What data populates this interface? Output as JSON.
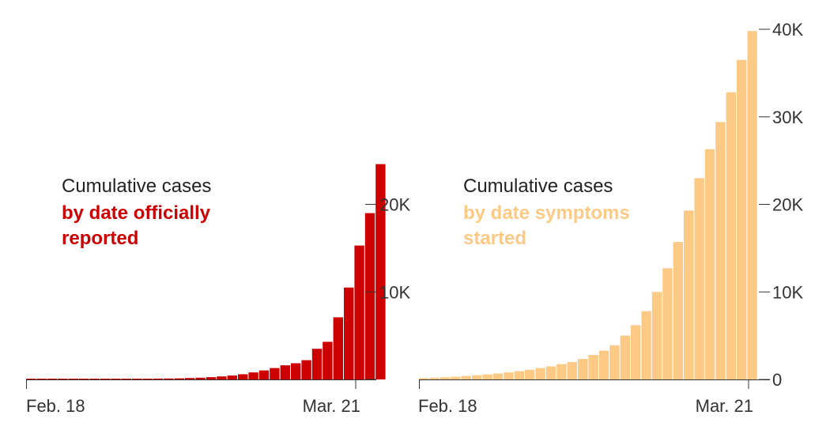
{
  "chart_data": [
    {
      "type": "bar",
      "annotation": {
        "line1": "Cumulative cases",
        "line2": "by date officially",
        "line3": "reported"
      },
      "color": "#cc0000",
      "x_labels": {
        "start": "Feb. 18",
        "end": "Mar. 21"
      },
      "y_ticks": [
        {
          "value": 0,
          "label": ""
        },
        {
          "value": 10000,
          "label": "10K"
        },
        {
          "value": 20000,
          "label": "20K"
        }
      ],
      "ylim": [
        0,
        40000
      ],
      "values": [
        10,
        12,
        15,
        18,
        22,
        27,
        32,
        38,
        45,
        55,
        68,
        80,
        95,
        110,
        130,
        160,
        200,
        260,
        340,
        450,
        600,
        800,
        1030,
        1300,
        1620,
        1850,
        2200,
        3500,
        4300,
        7100,
        10500,
        15300,
        19000,
        24600
      ]
    },
    {
      "type": "bar",
      "annotation": {
        "line1": "Cumulative cases",
        "line2": "by date symptoms",
        "line3": "started"
      },
      "color": "#fdca85",
      "x_labels": {
        "start": "Feb. 18",
        "end": "Mar. 21"
      },
      "y_ticks": [
        {
          "value": 0,
          "label": "0"
        },
        {
          "value": 10000,
          "label": "10K"
        },
        {
          "value": 20000,
          "label": "20K"
        },
        {
          "value": 30000,
          "label": "30K"
        },
        {
          "value": 40000,
          "label": "40K"
        }
      ],
      "ylim": [
        0,
        40000
      ],
      "values": [
        150,
        200,
        260,
        320,
        400,
        480,
        570,
        680,
        800,
        950,
        1100,
        1300,
        1500,
        1750,
        2000,
        2350,
        2800,
        3300,
        3900,
        5000,
        6200,
        7800,
        10000,
        12700,
        15700,
        19300,
        23000,
        26300,
        29400,
        32800,
        36500,
        39800
      ]
    }
  ]
}
